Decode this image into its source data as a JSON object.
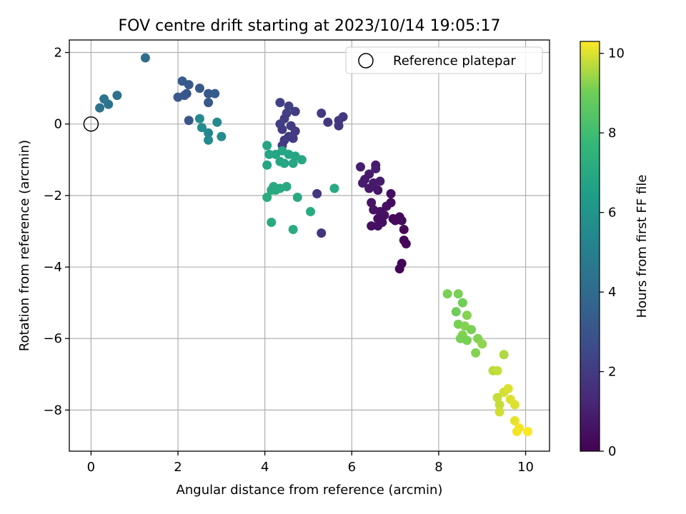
{
  "chart_data": {
    "type": "scatter",
    "title": "FOV centre drift starting at 2023/10/14 19:05:17",
    "xlabel": "Angular distance from reference (arcmin)",
    "ylabel": "Rotation from reference (arcmin)",
    "xlim": [
      -0.5,
      10.55
    ],
    "ylim": [
      -9.15,
      2.35
    ],
    "xticks": [
      0,
      2,
      4,
      6,
      8,
      10
    ],
    "yticks": [
      2,
      0,
      -2,
      -4,
      -6,
      -8
    ],
    "grid": true,
    "legend": {
      "placement": "upper-right",
      "entries": [
        {
          "label": "Reference platepar",
          "marker": "open-circle",
          "point": [
            0,
            0
          ]
        }
      ]
    },
    "colorbar": {
      "label": "Hours from first FF file",
      "colormap": "viridis",
      "range": [
        0,
        10.3
      ],
      "ticks": [
        0,
        2,
        4,
        6,
        8,
        10
      ]
    },
    "marker_color_by": "hours",
    "points": [
      [
        6.2,
        -1.2,
        1.0
      ],
      [
        6.4,
        -1.4,
        0.9
      ],
      [
        6.55,
        -1.15,
        0.9
      ],
      [
        6.3,
        -1.55,
        0.8
      ],
      [
        6.5,
        -1.65,
        0.8
      ],
      [
        6.65,
        -1.6,
        0.9
      ],
      [
        6.6,
        -1.85,
        0.7
      ],
      [
        6.4,
        -1.8,
        0.8
      ],
      [
        6.25,
        -1.65,
        0.9
      ],
      [
        6.55,
        -1.25,
        1.0
      ],
      [
        6.45,
        -2.2,
        0.6
      ],
      [
        6.5,
        -2.4,
        0.6
      ],
      [
        6.65,
        -2.45,
        0.5
      ],
      [
        6.75,
        -2.55,
        0.5
      ],
      [
        6.6,
        -2.65,
        0.4
      ],
      [
        6.8,
        -2.3,
        0.5
      ],
      [
        6.9,
        -1.95,
        0.4
      ],
      [
        6.9,
        -2.2,
        0.4
      ],
      [
        6.95,
        -2.65,
        0.3
      ],
      [
        7.1,
        -2.6,
        0.3
      ],
      [
        6.7,
        -2.75,
        0.4
      ],
      [
        6.45,
        -2.85,
        0.5
      ],
      [
        6.6,
        -2.85,
        0.5
      ],
      [
        7.0,
        -2.7,
        0.3
      ],
      [
        7.15,
        -2.7,
        0.3
      ],
      [
        7.2,
        -2.95,
        0.2
      ],
      [
        7.2,
        -3.25,
        0.2
      ],
      [
        7.25,
        -3.35,
        0.2
      ],
      [
        7.15,
        -3.9,
        0.1
      ],
      [
        7.1,
        -4.05,
        0.1
      ],
      [
        4.35,
        0.6,
        2.2
      ],
      [
        4.55,
        0.5,
        2.2
      ],
      [
        4.7,
        0.35,
        2.1
      ],
      [
        4.5,
        0.3,
        2.2
      ],
      [
        4.45,
        0.15,
        2.1
      ],
      [
        4.35,
        0.0,
        2.2
      ],
      [
        4.6,
        -0.05,
        2.0
      ],
      [
        4.4,
        -0.15,
        2.1
      ],
      [
        4.7,
        -0.2,
        2.0
      ],
      [
        4.55,
        -0.35,
        2.0
      ],
      [
        4.65,
        -0.4,
        2.1
      ],
      [
        4.45,
        -0.45,
        2.0
      ],
      [
        4.4,
        -0.6,
        2.1
      ],
      [
        5.3,
        0.3,
        2.0
      ],
      [
        5.45,
        0.05,
        1.9
      ],
      [
        5.7,
        -0.05,
        1.9
      ],
      [
        5.7,
        0.1,
        1.9
      ],
      [
        5.8,
        0.2,
        1.9
      ],
      [
        5.2,
        -1.95,
        1.8
      ],
      [
        5.3,
        -3.05,
        1.7
      ],
      [
        2.1,
        1.2,
        3.3
      ],
      [
        2.25,
        1.1,
        3.2
      ],
      [
        2.15,
        0.8,
        3.3
      ],
      [
        2.0,
        0.75,
        3.2
      ],
      [
        2.5,
        1.0,
        3.2
      ],
      [
        2.7,
        0.85,
        3.2
      ],
      [
        2.85,
        0.85,
        3.3
      ],
      [
        2.7,
        0.6,
        3.2
      ],
      [
        2.25,
        0.1,
        3.1
      ],
      [
        2.2,
        0.85,
        3.1
      ],
      [
        1.25,
        1.85,
        4.1
      ],
      [
        0.6,
        0.8,
        4.3
      ],
      [
        0.4,
        0.55,
        4.4
      ],
      [
        0.3,
        0.7,
        4.5
      ],
      [
        0.2,
        0.45,
        4.4
      ],
      [
        2.5,
        0.15,
        5.5
      ],
      [
        2.55,
        -0.1,
        5.6
      ],
      [
        2.7,
        -0.25,
        5.4
      ],
      [
        2.7,
        -0.45,
        5.5
      ],
      [
        2.9,
        0.05,
        5.5
      ],
      [
        3.0,
        -0.35,
        5.6
      ],
      [
        4.05,
        -0.6,
        6.8
      ],
      [
        4.1,
        -0.85,
        6.8
      ],
      [
        4.05,
        -1.15,
        6.8
      ],
      [
        4.25,
        -0.85,
        6.8
      ],
      [
        4.35,
        -1.05,
        6.8
      ],
      [
        4.45,
        -1.1,
        6.9
      ],
      [
        4.55,
        -0.85,
        6.8
      ],
      [
        4.65,
        -1.1,
        6.9
      ],
      [
        4.7,
        -0.9,
        6.8
      ],
      [
        4.85,
        -1.0,
        6.9
      ],
      [
        4.4,
        -0.75,
        6.8
      ],
      [
        4.2,
        -1.75,
        7.0
      ],
      [
        4.25,
        -1.85,
        7.0
      ],
      [
        4.35,
        -1.8,
        7.0
      ],
      [
        4.5,
        -1.75,
        7.0
      ],
      [
        4.15,
        -1.85,
        7.0
      ],
      [
        4.05,
        -2.05,
        7.1
      ],
      [
        4.15,
        -2.75,
        7.0
      ],
      [
        4.75,
        -2.05,
        7.0
      ],
      [
        5.05,
        -2.45,
        7.1
      ],
      [
        4.65,
        -2.95,
        7.1
      ],
      [
        5.6,
        -1.8,
        7.1
      ],
      [
        8.2,
        -4.75,
        9.1
      ],
      [
        8.45,
        -4.75,
        9.1
      ],
      [
        8.55,
        -5.0,
        9.0
      ],
      [
        8.4,
        -5.25,
        9.0
      ],
      [
        8.65,
        -5.35,
        9.2
      ],
      [
        8.45,
        -5.6,
        9.1
      ],
      [
        8.6,
        -5.65,
        9.2
      ],
      [
        8.75,
        -5.75,
        9.1
      ],
      [
        8.55,
        -5.9,
        9.2
      ],
      [
        8.5,
        -6.0,
        9.1
      ],
      [
        8.65,
        -6.05,
        9.1
      ],
      [
        8.9,
        -6.0,
        9.2
      ],
      [
        9.0,
        -6.15,
        9.3
      ],
      [
        8.85,
        -6.4,
        9.2
      ],
      [
        9.5,
        -6.45,
        9.6
      ],
      [
        9.25,
        -6.9,
        9.7
      ],
      [
        9.35,
        -6.9,
        9.8
      ],
      [
        9.35,
        -7.65,
        9.8
      ],
      [
        9.5,
        -7.5,
        9.9
      ],
      [
        9.6,
        -7.4,
        10.0
      ],
      [
        9.4,
        -7.85,
        9.8
      ],
      [
        9.4,
        -8.05,
        9.9
      ],
      [
        9.65,
        -7.7,
        10.0
      ],
      [
        9.75,
        -7.85,
        10.0
      ],
      [
        9.75,
        -8.3,
        10.1
      ],
      [
        9.85,
        -8.5,
        10.2
      ],
      [
        9.8,
        -8.6,
        10.2
      ],
      [
        10.05,
        -8.6,
        10.3
      ]
    ]
  }
}
